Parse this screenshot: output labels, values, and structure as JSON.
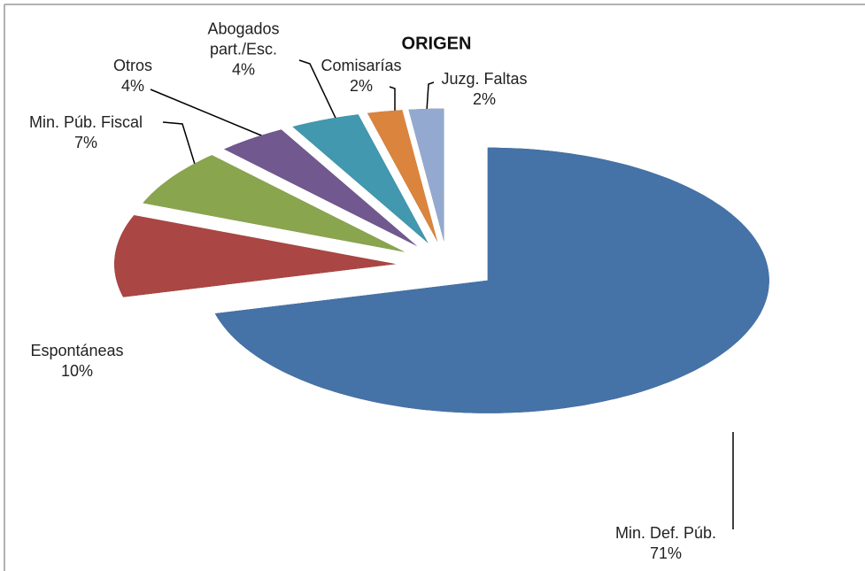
{
  "chart_data": {
    "type": "pie",
    "title": "ORIGEN",
    "three_d": true,
    "exploded": true,
    "categories": [
      "Min. Def. Púb.",
      "Espontáneas",
      "Min. Púb. Fiscal",
      "Otros",
      "Abogados part./Esc.",
      "Comisarías",
      "Juzg. Faltas"
    ],
    "values": [
      71,
      10,
      7,
      4,
      4,
      2,
      2
    ],
    "value_labels": [
      "71%",
      "10%",
      "7%",
      "4%",
      "4%",
      "2%",
      "2%"
    ],
    "colors": [
      "#4572a7",
      "#aa4643",
      "#89a54e",
      "#71588f",
      "#4198af",
      "#db843d",
      "#93a9cf"
    ]
  }
}
